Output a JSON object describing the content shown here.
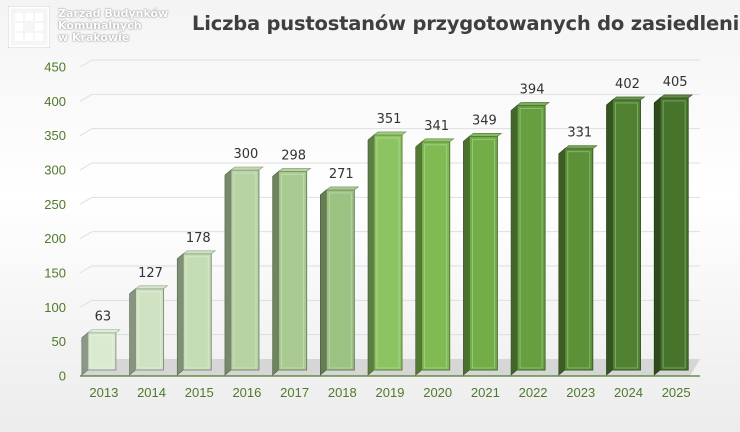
{
  "logo": {
    "lines": [
      "Zarząd Budynków",
      "Komunalnych",
      "w Krakowie"
    ]
  },
  "chart_data": {
    "type": "bar",
    "title": "Liczba pustostanów przygotowanych do zasiedlenia",
    "categories": [
      "2013",
      "2014",
      "2015",
      "2016",
      "2017",
      "2018",
      "2019",
      "2020",
      "2021",
      "2022",
      "2023",
      "2024",
      "2025"
    ],
    "values": [
      63,
      127,
      178,
      300,
      298,
      271,
      351,
      341,
      349,
      394,
      331,
      402,
      405
    ],
    "xlabel": "",
    "ylabel": "",
    "ylim": [
      0,
      450
    ],
    "yticks": [
      0,
      50,
      100,
      150,
      200,
      250,
      300,
      350,
      400,
      450
    ],
    "grid": true,
    "legend": "none",
    "bar_colors": [
      "#d9ead0",
      "#cfe3c3",
      "#c4ddb5",
      "#b7d3a3",
      "#a9cb92",
      "#9cc282",
      "#8cc462",
      "#7fba52",
      "#72ad48",
      "#679f40",
      "#5c9138",
      "#518232",
      "#47742b"
    ],
    "axis_color": "#4e7a2b"
  }
}
